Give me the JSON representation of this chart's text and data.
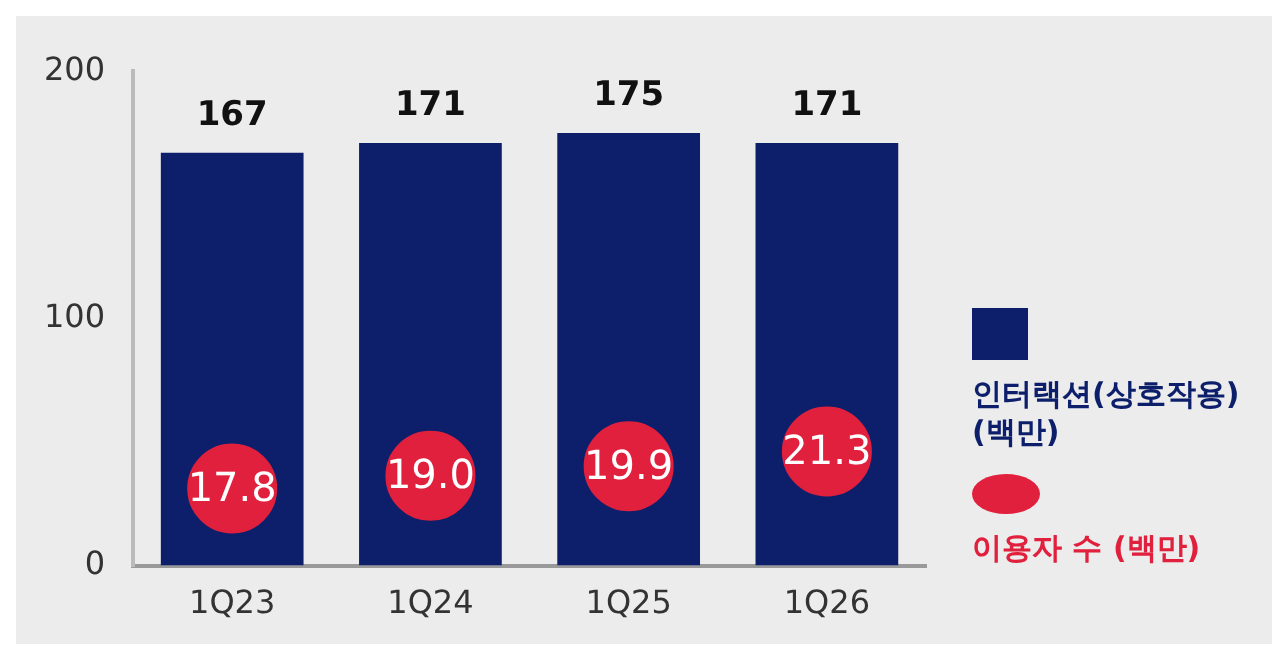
{
  "chart_data": {
    "type": "bar",
    "categories": [
      "1Q23",
      "1Q24",
      "1Q25",
      "1Q26"
    ],
    "series": [
      {
        "name": "인터랙션(상호작용) (백만)",
        "color": "#0d1f6b",
        "values": [
          167,
          171,
          175,
          171
        ]
      },
      {
        "name": "이용자 수 (백만)",
        "type": "scatter",
        "axis": "y2",
        "color": "#e0203c",
        "values": [
          17.8,
          19.0,
          19.9,
          21.3
        ],
        "value_labels": [
          "17.8",
          "19.0",
          "19.9",
          "21.3"
        ]
      }
    ],
    "ylim": [
      0,
      200
    ],
    "yticks": [
      0,
      100,
      200
    ],
    "y2lim": [
      10.5,
      57.3
    ],
    "grid": false,
    "legend": "right",
    "data_labels": true,
    "marker": "circle"
  }
}
